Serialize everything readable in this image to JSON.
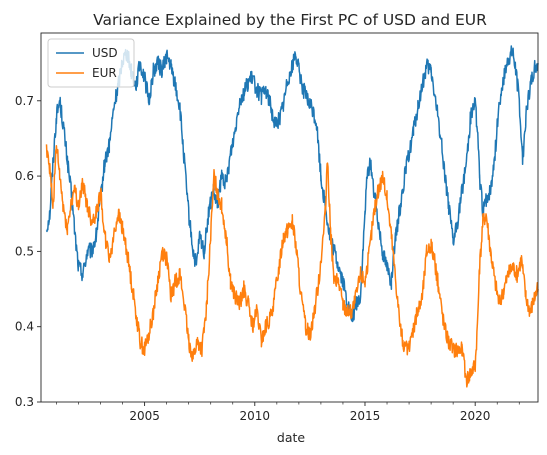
{
  "chart_data": {
    "type": "line",
    "title": "Variance Explained by the First PC of USD and EUR",
    "xlabel": "date",
    "ylabel": "",
    "xlim": [
      2000.3,
      2022.85
    ],
    "ylim": [
      0.3,
      0.79
    ],
    "x_ticks": [
      2005,
      2010,
      2015,
      2020
    ],
    "y_ticks": [
      0.3,
      0.4,
      0.5,
      0.6,
      0.7
    ],
    "x_tick_labels": [
      "2005",
      "2010",
      "2015",
      "2020"
    ],
    "y_tick_labels": [
      "0.3",
      "0.4",
      "0.5",
      "0.6",
      "0.7"
    ],
    "grid": false,
    "legend_position": "upper-left",
    "series": [
      {
        "name": "USD",
        "color": "#1f77b4",
        "points": [
          [
            2000.55,
            0.53
          ],
          [
            2000.7,
            0.55
          ],
          [
            2000.85,
            0.62
          ],
          [
            2001.0,
            0.68
          ],
          [
            2001.15,
            0.7
          ],
          [
            2001.3,
            0.67
          ],
          [
            2001.5,
            0.62
          ],
          [
            2001.7,
            0.57
          ],
          [
            2001.85,
            0.52
          ],
          [
            2002.0,
            0.48
          ],
          [
            2002.2,
            0.47
          ],
          [
            2002.4,
            0.5
          ],
          [
            2002.6,
            0.5
          ],
          [
            2002.8,
            0.52
          ],
          [
            2003.0,
            0.57
          ],
          [
            2003.2,
            0.62
          ],
          [
            2003.4,
            0.64
          ],
          [
            2003.6,
            0.69
          ],
          [
            2003.8,
            0.72
          ],
          [
            2004.0,
            0.755
          ],
          [
            2004.2,
            0.765
          ],
          [
            2004.4,
            0.74
          ],
          [
            2004.6,
            0.72
          ],
          [
            2004.8,
            0.75
          ],
          [
            2005.0,
            0.73
          ],
          [
            2005.2,
            0.7
          ],
          [
            2005.4,
            0.74
          ],
          [
            2005.6,
            0.75
          ],
          [
            2005.8,
            0.74
          ],
          [
            2006.0,
            0.76
          ],
          [
            2006.2,
            0.745
          ],
          [
            2006.4,
            0.72
          ],
          [
            2006.6,
            0.69
          ],
          [
            2006.8,
            0.62
          ],
          [
            2007.0,
            0.55
          ],
          [
            2007.2,
            0.5
          ],
          [
            2007.35,
            0.48
          ],
          [
            2007.5,
            0.52
          ],
          [
            2007.7,
            0.5
          ],
          [
            2007.9,
            0.55
          ],
          [
            2008.1,
            0.58
          ],
          [
            2008.3,
            0.56
          ],
          [
            2008.5,
            0.6
          ],
          [
            2008.7,
            0.59
          ],
          [
            2008.9,
            0.63
          ],
          [
            2009.1,
            0.66
          ],
          [
            2009.3,
            0.7
          ],
          [
            2009.5,
            0.71
          ],
          [
            2009.7,
            0.725
          ],
          [
            2009.9,
            0.73
          ],
          [
            2010.1,
            0.715
          ],
          [
            2010.3,
            0.705
          ],
          [
            2010.5,
            0.715
          ],
          [
            2010.7,
            0.695
          ],
          [
            2010.9,
            0.67
          ],
          [
            2011.1,
            0.675
          ],
          [
            2011.3,
            0.695
          ],
          [
            2011.5,
            0.73
          ],
          [
            2011.7,
            0.745
          ],
          [
            2011.85,
            0.765
          ],
          [
            2012.0,
            0.74
          ],
          [
            2012.2,
            0.715
          ],
          [
            2012.4,
            0.7
          ],
          [
            2012.6,
            0.69
          ],
          [
            2012.8,
            0.67
          ],
          [
            2013.0,
            0.6
          ],
          [
            2013.2,
            0.56
          ],
          [
            2013.4,
            0.52
          ],
          [
            2013.6,
            0.5
          ],
          [
            2013.8,
            0.48
          ],
          [
            2014.0,
            0.46
          ],
          [
            2014.2,
            0.43
          ],
          [
            2014.4,
            0.41
          ],
          [
            2014.6,
            0.43
          ],
          [
            2014.8,
            0.44
          ],
          [
            2015.0,
            0.55
          ],
          [
            2015.1,
            0.6
          ],
          [
            2015.25,
            0.62
          ],
          [
            2015.4,
            0.58
          ],
          [
            2015.6,
            0.54
          ],
          [
            2015.8,
            0.5
          ],
          [
            2016.0,
            0.48
          ],
          [
            2016.2,
            0.46
          ],
          [
            2016.4,
            0.52
          ],
          [
            2016.6,
            0.56
          ],
          [
            2016.8,
            0.6
          ],
          [
            2017.0,
            0.63
          ],
          [
            2017.2,
            0.66
          ],
          [
            2017.4,
            0.69
          ],
          [
            2017.6,
            0.72
          ],
          [
            2017.8,
            0.745
          ],
          [
            2018.0,
            0.74
          ],
          [
            2018.2,
            0.7
          ],
          [
            2018.4,
            0.66
          ],
          [
            2018.6,
            0.61
          ],
          [
            2018.8,
            0.56
          ],
          [
            2019.0,
            0.51
          ],
          [
            2019.2,
            0.54
          ],
          [
            2019.4,
            0.58
          ],
          [
            2019.6,
            0.62
          ],
          [
            2019.8,
            0.68
          ],
          [
            2020.0,
            0.7
          ],
          [
            2020.1,
            0.66
          ],
          [
            2020.2,
            0.6
          ],
          [
            2020.35,
            0.55
          ],
          [
            2020.5,
            0.57
          ],
          [
            2020.7,
            0.58
          ],
          [
            2020.9,
            0.63
          ],
          [
            2021.1,
            0.7
          ],
          [
            2021.3,
            0.73
          ],
          [
            2021.5,
            0.755
          ],
          [
            2021.7,
            0.765
          ],
          [
            2021.85,
            0.74
          ],
          [
            2022.0,
            0.7
          ],
          [
            2022.15,
            0.62
          ],
          [
            2022.3,
            0.68
          ],
          [
            2022.5,
            0.72
          ],
          [
            2022.7,
            0.745
          ],
          [
            2022.85,
            0.75
          ]
        ]
      },
      {
        "name": "EUR",
        "color": "#ff7f0e",
        "points": [
          [
            2000.55,
            0.64
          ],
          [
            2000.7,
            0.61
          ],
          [
            2000.85,
            0.56
          ],
          [
            2001.0,
            0.64
          ],
          [
            2001.15,
            0.6
          ],
          [
            2001.3,
            0.56
          ],
          [
            2001.5,
            0.53
          ],
          [
            2001.7,
            0.57
          ],
          [
            2001.85,
            0.58
          ],
          [
            2002.0,
            0.56
          ],
          [
            2002.2,
            0.59
          ],
          [
            2002.4,
            0.56
          ],
          [
            2002.6,
            0.54
          ],
          [
            2002.8,
            0.55
          ],
          [
            2003.0,
            0.58
          ],
          [
            2003.2,
            0.52
          ],
          [
            2003.4,
            0.49
          ],
          [
            2003.6,
            0.52
          ],
          [
            2003.8,
            0.55
          ],
          [
            2004.0,
            0.53
          ],
          [
            2004.2,
            0.5
          ],
          [
            2004.4,
            0.46
          ],
          [
            2004.6,
            0.42
          ],
          [
            2004.8,
            0.38
          ],
          [
            2005.0,
            0.37
          ],
          [
            2005.2,
            0.39
          ],
          [
            2005.4,
            0.42
          ],
          [
            2005.6,
            0.46
          ],
          [
            2005.8,
            0.5
          ],
          [
            2006.0,
            0.49
          ],
          [
            2006.2,
            0.44
          ],
          [
            2006.4,
            0.46
          ],
          [
            2006.6,
            0.47
          ],
          [
            2006.8,
            0.43
          ],
          [
            2007.0,
            0.38
          ],
          [
            2007.2,
            0.36
          ],
          [
            2007.4,
            0.38
          ],
          [
            2007.6,
            0.37
          ],
          [
            2007.8,
            0.42
          ],
          [
            2008.0,
            0.52
          ],
          [
            2008.15,
            0.6
          ],
          [
            2008.3,
            0.58
          ],
          [
            2008.5,
            0.56
          ],
          [
            2008.7,
            0.52
          ],
          [
            2008.9,
            0.46
          ],
          [
            2009.1,
            0.44
          ],
          [
            2009.3,
            0.43
          ],
          [
            2009.5,
            0.45
          ],
          [
            2009.7,
            0.43
          ],
          [
            2009.9,
            0.4
          ],
          [
            2010.1,
            0.42
          ],
          [
            2010.3,
            0.38
          ],
          [
            2010.5,
            0.4
          ],
          [
            2010.7,
            0.41
          ],
          [
            2010.9,
            0.44
          ],
          [
            2011.1,
            0.48
          ],
          [
            2011.3,
            0.52
          ],
          [
            2011.5,
            0.53
          ],
          [
            2011.7,
            0.54
          ],
          [
            2011.9,
            0.5
          ],
          [
            2012.1,
            0.44
          ],
          [
            2012.3,
            0.4
          ],
          [
            2012.5,
            0.39
          ],
          [
            2012.7,
            0.42
          ],
          [
            2012.9,
            0.46
          ],
          [
            2013.1,
            0.52
          ],
          [
            2013.2,
            0.55
          ],
          [
            2013.3,
            0.62
          ],
          [
            2013.45,
            0.52
          ],
          [
            2013.6,
            0.46
          ],
          [
            2013.8,
            0.46
          ],
          [
            2014.0,
            0.43
          ],
          [
            2014.2,
            0.42
          ],
          [
            2014.4,
            0.42
          ],
          [
            2014.6,
            0.44
          ],
          [
            2014.8,
            0.47
          ],
          [
            2015.0,
            0.46
          ],
          [
            2015.2,
            0.5
          ],
          [
            2015.4,
            0.55
          ],
          [
            2015.6,
            0.58
          ],
          [
            2015.8,
            0.6
          ],
          [
            2016.0,
            0.57
          ],
          [
            2016.2,
            0.52
          ],
          [
            2016.4,
            0.46
          ],
          [
            2016.6,
            0.4
          ],
          [
            2016.8,
            0.37
          ],
          [
            2017.0,
            0.37
          ],
          [
            2017.2,
            0.4
          ],
          [
            2017.4,
            0.42
          ],
          [
            2017.6,
            0.44
          ],
          [
            2017.8,
            0.5
          ],
          [
            2018.0,
            0.51
          ],
          [
            2018.2,
            0.48
          ],
          [
            2018.4,
            0.44
          ],
          [
            2018.6,
            0.4
          ],
          [
            2018.8,
            0.38
          ],
          [
            2019.0,
            0.37
          ],
          [
            2019.2,
            0.37
          ],
          [
            2019.4,
            0.37
          ],
          [
            2019.6,
            0.33
          ],
          [
            2019.8,
            0.34
          ],
          [
            2020.0,
            0.35
          ],
          [
            2020.1,
            0.4
          ],
          [
            2020.2,
            0.48
          ],
          [
            2020.35,
            0.54
          ],
          [
            2020.5,
            0.55
          ],
          [
            2020.7,
            0.5
          ],
          [
            2020.9,
            0.46
          ],
          [
            2021.1,
            0.43
          ],
          [
            2021.3,
            0.45
          ],
          [
            2021.5,
            0.47
          ],
          [
            2021.7,
            0.48
          ],
          [
            2021.9,
            0.47
          ],
          [
            2022.1,
            0.49
          ],
          [
            2022.3,
            0.44
          ],
          [
            2022.5,
            0.42
          ],
          [
            2022.7,
            0.44
          ],
          [
            2022.85,
            0.45
          ]
        ]
      }
    ]
  }
}
